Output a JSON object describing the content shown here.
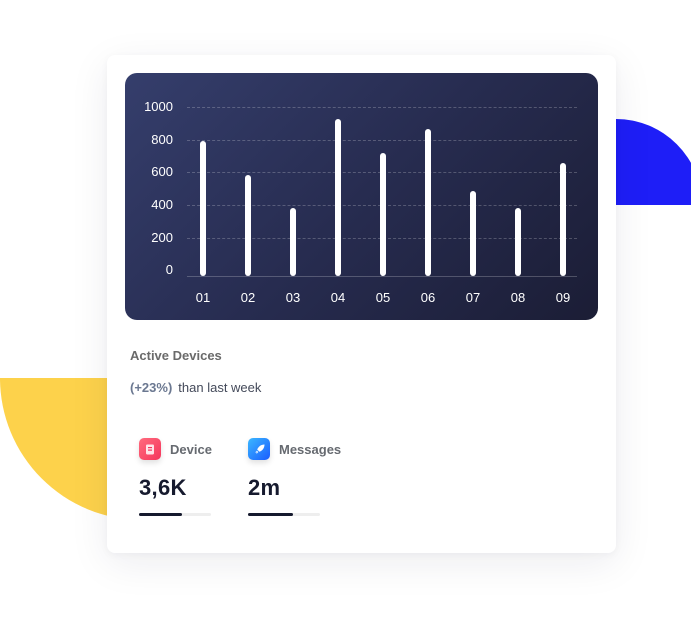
{
  "colors": {
    "decor_blue": "#1e1ef7",
    "decor_yellow": "#fdd24b",
    "chart_bg_start": "#353e6c",
    "chart_bg_end": "#1b1d35",
    "bar": "#ffffff",
    "device_icon": "#fb4d6d",
    "messages_icon": "#2b7cff",
    "progress_fill": "#161a2e"
  },
  "chart_data": {
    "type": "bar",
    "title": "Active Devices",
    "xlabel": "",
    "ylabel": "",
    "categories": [
      "01",
      "02",
      "03",
      "04",
      "05",
      "06",
      "07",
      "08",
      "09"
    ],
    "values": [
      800,
      600,
      400,
      930,
      730,
      870,
      500,
      400,
      670
    ],
    "y_ticks": [
      "0",
      "200",
      "400",
      "600",
      "800",
      "1000"
    ],
    "ylim": [
      0,
      1000
    ],
    "grid": true,
    "legend": null
  },
  "card": {
    "title": "Active Devices",
    "change": "(+23%)",
    "change_text": "than last week"
  },
  "stats": [
    {
      "label": "Device",
      "value": "3,6K",
      "icon": "document-icon",
      "progress": 60
    },
    {
      "label": "Messages",
      "value": "2m",
      "icon": "rocket-icon",
      "progress": 62
    }
  ]
}
